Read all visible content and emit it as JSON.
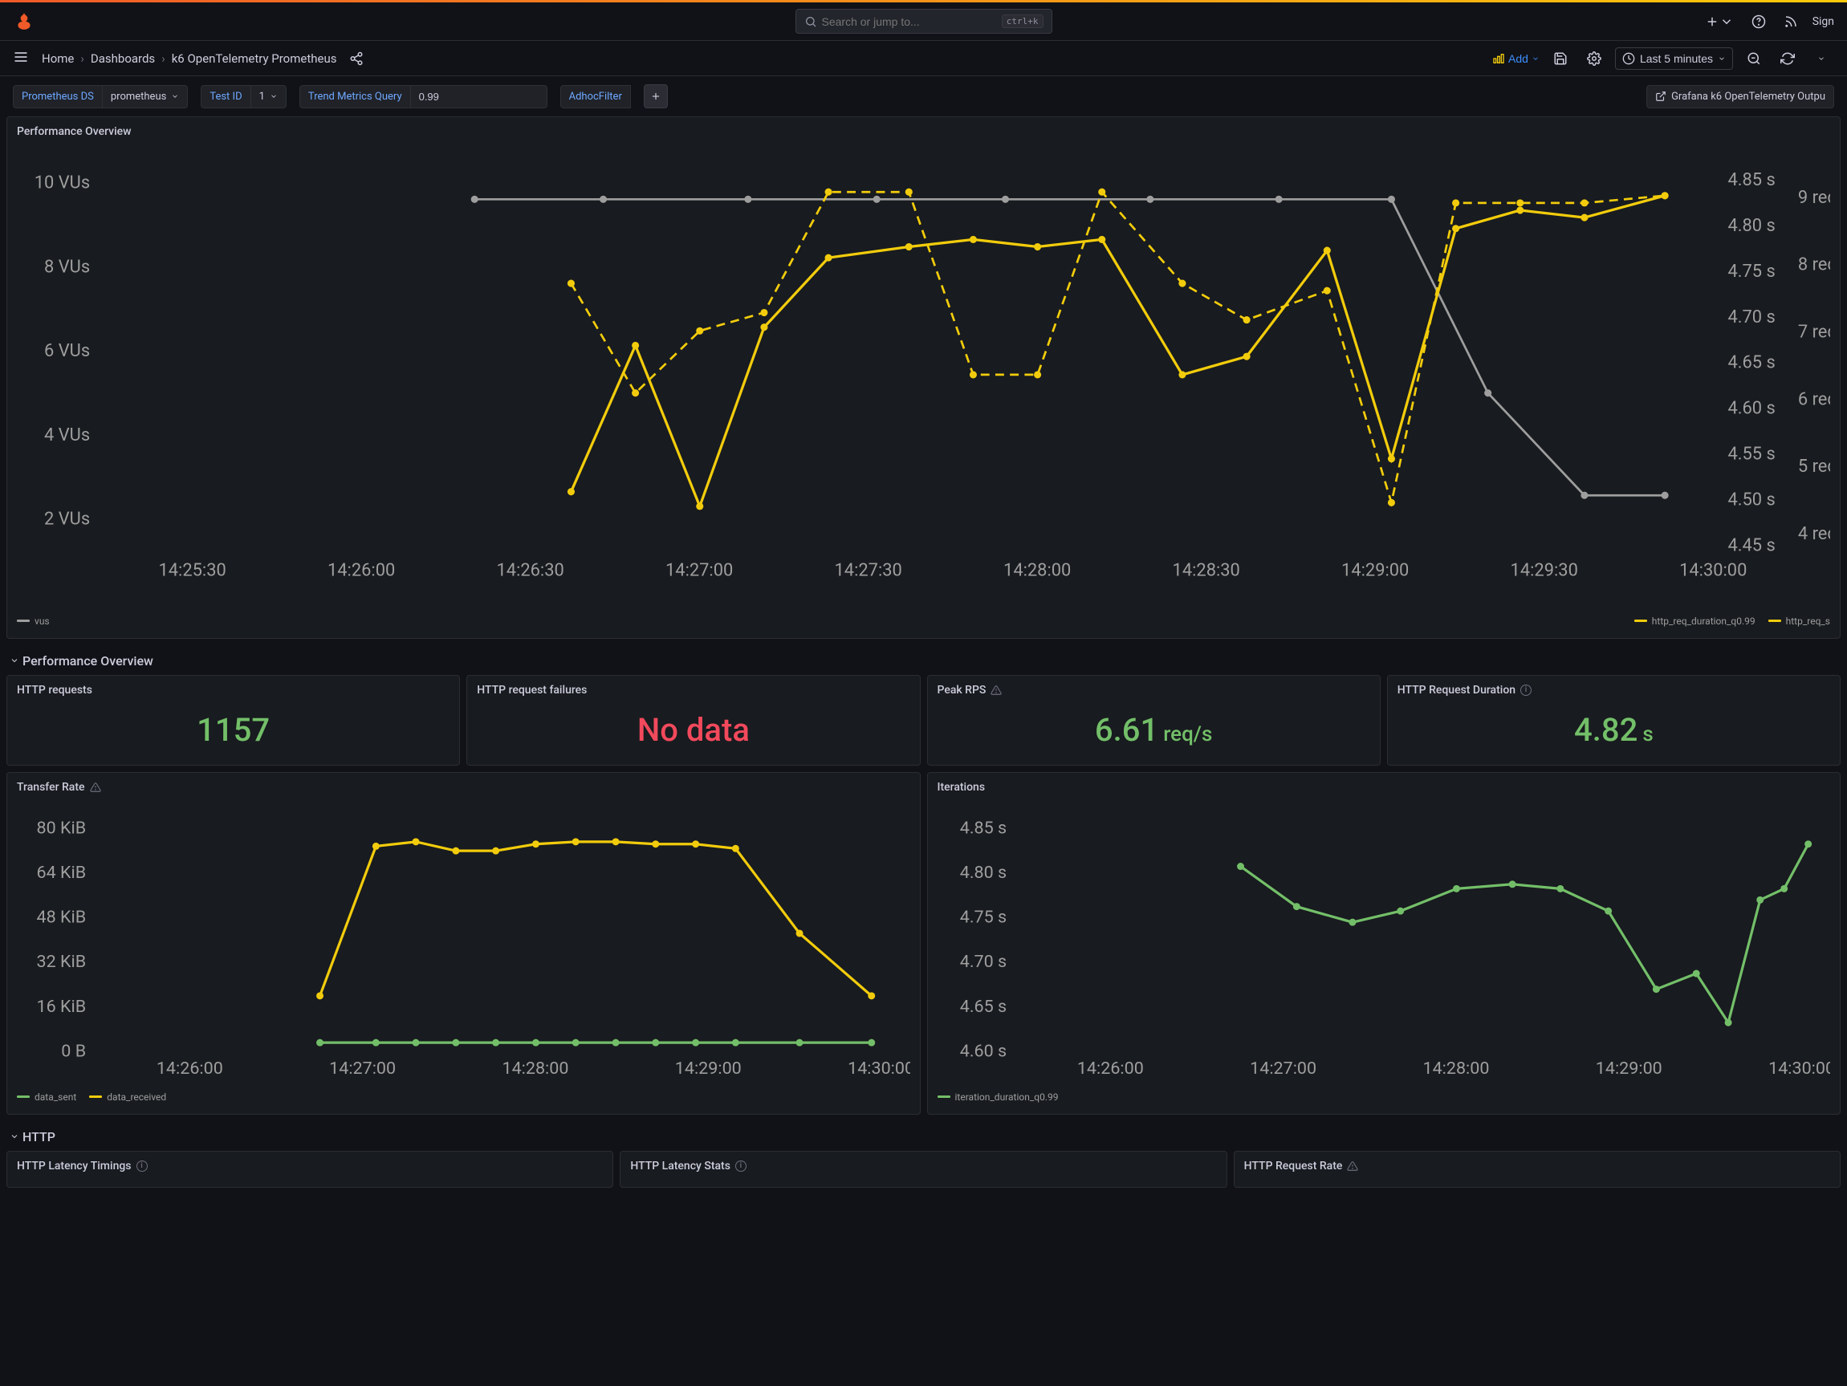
{
  "header": {
    "search_placeholder": "Search or jump to...",
    "search_kbd": "ctrl+k",
    "sign_in": "Sign"
  },
  "breadcrumb": {
    "home": "Home",
    "dashboards": "Dashboards",
    "current": "k6 OpenTelemetry Prometheus"
  },
  "toolbar": {
    "add": "Add",
    "time_range": "Last 5 minutes"
  },
  "variables": {
    "prometheus_ds_label": "Prometheus DS",
    "prometheus_ds_value": "prometheus",
    "test_id_label": "Test ID",
    "test_id_value": "1",
    "trend_label": "Trend Metrics Query",
    "trend_value": "0.99",
    "adhoc_label": "AdhocFilter",
    "output_link": "Grafana k6 OpenTelemetry Outpu"
  },
  "colors": {
    "bg": "#111217",
    "panel_bg": "#181b1f",
    "border": "#2c2c34",
    "text": "#ccccdc",
    "muted": "#8e8e9e",
    "green": "#73bf69",
    "red": "#f2495c",
    "yellow": "#f2cc0c",
    "grey": "#9e9e9e",
    "blue": "#3d8eff"
  },
  "perf_overview": {
    "title": "Performance Overview",
    "y1_labels": [
      "10 VUs",
      "8 VUs",
      "6 VUs",
      "4 VUs",
      "2 VUs"
    ],
    "y2_labels": [
      "4.85 s",
      "4.80 s",
      "4.75 s",
      "4.70 s",
      "4.65 s",
      "4.60 s",
      "4.55 s",
      "4.50 s",
      "4.45 s"
    ],
    "y3_labels": [
      "9 req/",
      "8 req/",
      "7 req/",
      "6 req/",
      "5 req/",
      "4 req/"
    ],
    "x_labels": [
      "14:25:30",
      "14:26:00",
      "14:26:30",
      "14:27:00",
      "14:27:30",
      "14:28:00",
      "14:28:30",
      "14:29:00",
      "14:29:30",
      "14:30:00"
    ],
    "legend_vus": "vus",
    "legend_http_dur": "http_req_duration_q0.99",
    "legend_http_s": "http_req_s",
    "vus_color": "#9e9e9e",
    "dur_color": "#f2cc0c",
    "vus_points": [
      [
        0.23,
        0.07
      ],
      [
        0.31,
        0.07
      ],
      [
        0.4,
        0.07
      ],
      [
        0.48,
        0.07
      ],
      [
        0.56,
        0.07
      ],
      [
        0.65,
        0.07
      ],
      [
        0.73,
        0.07
      ],
      [
        0.8,
        0.07
      ],
      [
        0.86,
        0.6
      ],
      [
        0.92,
        0.88
      ],
      [
        0.97,
        0.88
      ]
    ],
    "dur_points": [
      [
        0.29,
        0.87
      ],
      [
        0.33,
        0.47
      ],
      [
        0.37,
        0.91
      ],
      [
        0.41,
        0.42
      ],
      [
        0.45,
        0.23
      ],
      [
        0.5,
        0.2
      ],
      [
        0.54,
        0.18
      ],
      [
        0.58,
        0.2
      ],
      [
        0.62,
        0.18
      ],
      [
        0.67,
        0.55
      ],
      [
        0.71,
        0.5
      ],
      [
        0.76,
        0.21
      ],
      [
        0.8,
        0.78
      ],
      [
        0.84,
        0.15
      ],
      [
        0.88,
        0.1
      ],
      [
        0.92,
        0.12
      ],
      [
        0.97,
        0.06
      ]
    ],
    "dashed_points": [
      [
        0.29,
        0.3
      ],
      [
        0.33,
        0.6
      ],
      [
        0.37,
        0.43
      ],
      [
        0.41,
        0.38
      ],
      [
        0.45,
        0.05
      ],
      [
        0.5,
        0.05
      ],
      [
        0.54,
        0.55
      ],
      [
        0.58,
        0.55
      ],
      [
        0.62,
        0.05
      ],
      [
        0.67,
        0.3
      ],
      [
        0.71,
        0.4
      ],
      [
        0.76,
        0.32
      ],
      [
        0.8,
        0.9
      ],
      [
        0.84,
        0.08
      ],
      [
        0.88,
        0.08
      ],
      [
        0.92,
        0.08
      ],
      [
        0.97,
        0.06
      ]
    ]
  },
  "row_perf": {
    "title": "Performance Overview"
  },
  "stats": {
    "http_requests": {
      "title": "HTTP requests",
      "value": "1157"
    },
    "http_failures": {
      "title": "HTTP request failures",
      "value": "No data"
    },
    "peak_rps": {
      "title": "Peak RPS",
      "value": "6.61",
      "unit": "req/s"
    },
    "http_duration": {
      "title": "HTTP Request Duration",
      "value": "4.82",
      "unit": "s"
    }
  },
  "transfer_rate": {
    "title": "Transfer Rate",
    "y_labels": [
      "80 KiB",
      "64 KiB",
      "48 KiB",
      "32 KiB",
      "16 KiB",
      "0 B"
    ],
    "x_labels": [
      "14:26:00",
      "14:27:00",
      "14:28:00",
      "14:29:00",
      "14:30:00"
    ],
    "legend_sent": "data_sent",
    "legend_received": "data_received",
    "sent_color": "#73bf69",
    "received_color": "#f2cc0c",
    "received_points": [
      [
        0.28,
        0.78
      ],
      [
        0.35,
        0.11
      ],
      [
        0.4,
        0.09
      ],
      [
        0.45,
        0.13
      ],
      [
        0.5,
        0.13
      ],
      [
        0.55,
        0.1
      ],
      [
        0.6,
        0.09
      ],
      [
        0.65,
        0.09
      ],
      [
        0.7,
        0.1
      ],
      [
        0.75,
        0.1
      ],
      [
        0.8,
        0.12
      ],
      [
        0.88,
        0.5
      ],
      [
        0.97,
        0.78
      ]
    ],
    "sent_points": [
      [
        0.28,
        0.99
      ],
      [
        0.35,
        0.99
      ],
      [
        0.4,
        0.99
      ],
      [
        0.45,
        0.99
      ],
      [
        0.5,
        0.99
      ],
      [
        0.55,
        0.99
      ],
      [
        0.6,
        0.99
      ],
      [
        0.65,
        0.99
      ],
      [
        0.7,
        0.99
      ],
      [
        0.75,
        0.99
      ],
      [
        0.8,
        0.99
      ],
      [
        0.88,
        0.99
      ],
      [
        0.97,
        0.99
      ]
    ]
  },
  "iterations": {
    "title": "Iterations",
    "y_labels": [
      "4.85 s",
      "4.80 s",
      "4.75 s",
      "4.70 s",
      "4.65 s",
      "4.60 s"
    ],
    "x_labels": [
      "14:26:00",
      "14:27:00",
      "14:28:00",
      "14:29:00",
      "14:30:00"
    ],
    "legend": "iteration_duration_q0.99",
    "color": "#73bf69",
    "points": [
      [
        0.28,
        0.2
      ],
      [
        0.35,
        0.38
      ],
      [
        0.42,
        0.45
      ],
      [
        0.48,
        0.4
      ],
      [
        0.55,
        0.3
      ],
      [
        0.62,
        0.28
      ],
      [
        0.68,
        0.3
      ],
      [
        0.74,
        0.4
      ],
      [
        0.8,
        0.75
      ],
      [
        0.85,
        0.68
      ],
      [
        0.89,
        0.9
      ],
      [
        0.93,
        0.35
      ],
      [
        0.96,
        0.3
      ],
      [
        0.99,
        0.1
      ]
    ]
  },
  "row_http": {
    "title": "HTTP",
    "latency_timings": "HTTP Latency Timings",
    "latency_stats": "HTTP Latency Stats",
    "request_rate": "HTTP Request Rate"
  }
}
